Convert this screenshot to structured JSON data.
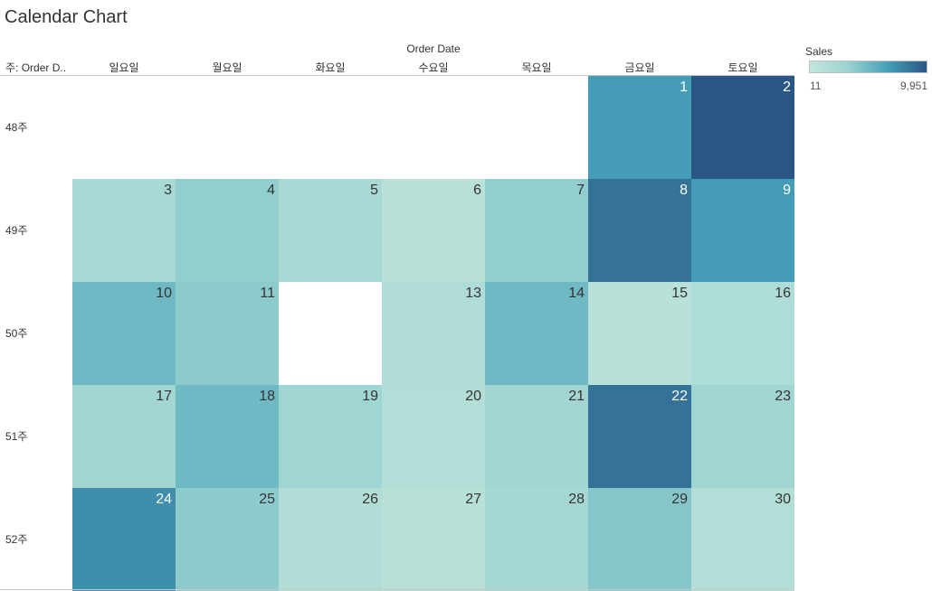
{
  "title": "Calendar Chart",
  "chart_data": {
    "type": "heatmap",
    "title": "Calendar Chart",
    "column_field": "Order Date",
    "row_field": "주: Order D..",
    "days": [
      "일요일",
      "월요일",
      "화요일",
      "수요일",
      "목요일",
      "금요일",
      "토요일"
    ],
    "weeks": [
      "48주",
      "49주",
      "50주",
      "51주",
      "52주"
    ],
    "measure": "Sales",
    "color_range": [
      11,
      9951
    ],
    "color_range_labels": [
      "11",
      "9,951"
    ],
    "color_scale": [
      "#c3e6dc",
      "#9ad2d0",
      "#45a0b8",
      "#2a5685"
    ],
    "cells": [
      {
        "week": 0,
        "day": 5,
        "label": "1",
        "value": 6800
      },
      {
        "week": 0,
        "day": 6,
        "label": "2",
        "value": 9951
      },
      {
        "week": 1,
        "day": 0,
        "label": "3",
        "value": 2200
      },
      {
        "week": 1,
        "day": 1,
        "label": "4",
        "value": 3600
      },
      {
        "week": 1,
        "day": 2,
        "label": "5",
        "value": 2200
      },
      {
        "week": 1,
        "day": 3,
        "label": "6",
        "value": 800
      },
      {
        "week": 1,
        "day": 4,
        "label": "7",
        "value": 3600
      },
      {
        "week": 1,
        "day": 5,
        "label": "8",
        "value": 8700
      },
      {
        "week": 1,
        "day": 6,
        "label": "9",
        "value": 6800
      },
      {
        "week": 2,
        "day": 0,
        "label": "10",
        "value": 5000
      },
      {
        "week": 2,
        "day": 1,
        "label": "11",
        "value": 3800
      },
      {
        "week": 2,
        "day": 3,
        "label": "13",
        "value": 1600
      },
      {
        "week": 2,
        "day": 4,
        "label": "14",
        "value": 5000
      },
      {
        "week": 2,
        "day": 5,
        "label": "15",
        "value": 900
      },
      {
        "week": 2,
        "day": 6,
        "label": "16",
        "value": 1700
      },
      {
        "week": 3,
        "day": 0,
        "label": "17",
        "value": 2700
      },
      {
        "week": 3,
        "day": 1,
        "label": "18",
        "value": 5000
      },
      {
        "week": 3,
        "day": 2,
        "label": "19",
        "value": 2900
      },
      {
        "week": 3,
        "day": 3,
        "label": "20",
        "value": 1400
      },
      {
        "week": 3,
        "day": 4,
        "label": "21",
        "value": 2600
      },
      {
        "week": 3,
        "day": 5,
        "label": "22",
        "value": 8700
      },
      {
        "week": 3,
        "day": 6,
        "label": "23",
        "value": 2800
      },
      {
        "week": 4,
        "day": 0,
        "label": "24",
        "value": 7400
      },
      {
        "week": 4,
        "day": 1,
        "label": "25",
        "value": 3800
      },
      {
        "week": 4,
        "day": 2,
        "label": "26",
        "value": 1500
      },
      {
        "week": 4,
        "day": 3,
        "label": "27",
        "value": 1000
      },
      {
        "week": 4,
        "day": 4,
        "label": "28",
        "value": 2400
      },
      {
        "week": 4,
        "day": 5,
        "label": "29",
        "value": 4100
      },
      {
        "week": 4,
        "day": 6,
        "label": "30",
        "value": 1400
      }
    ]
  }
}
